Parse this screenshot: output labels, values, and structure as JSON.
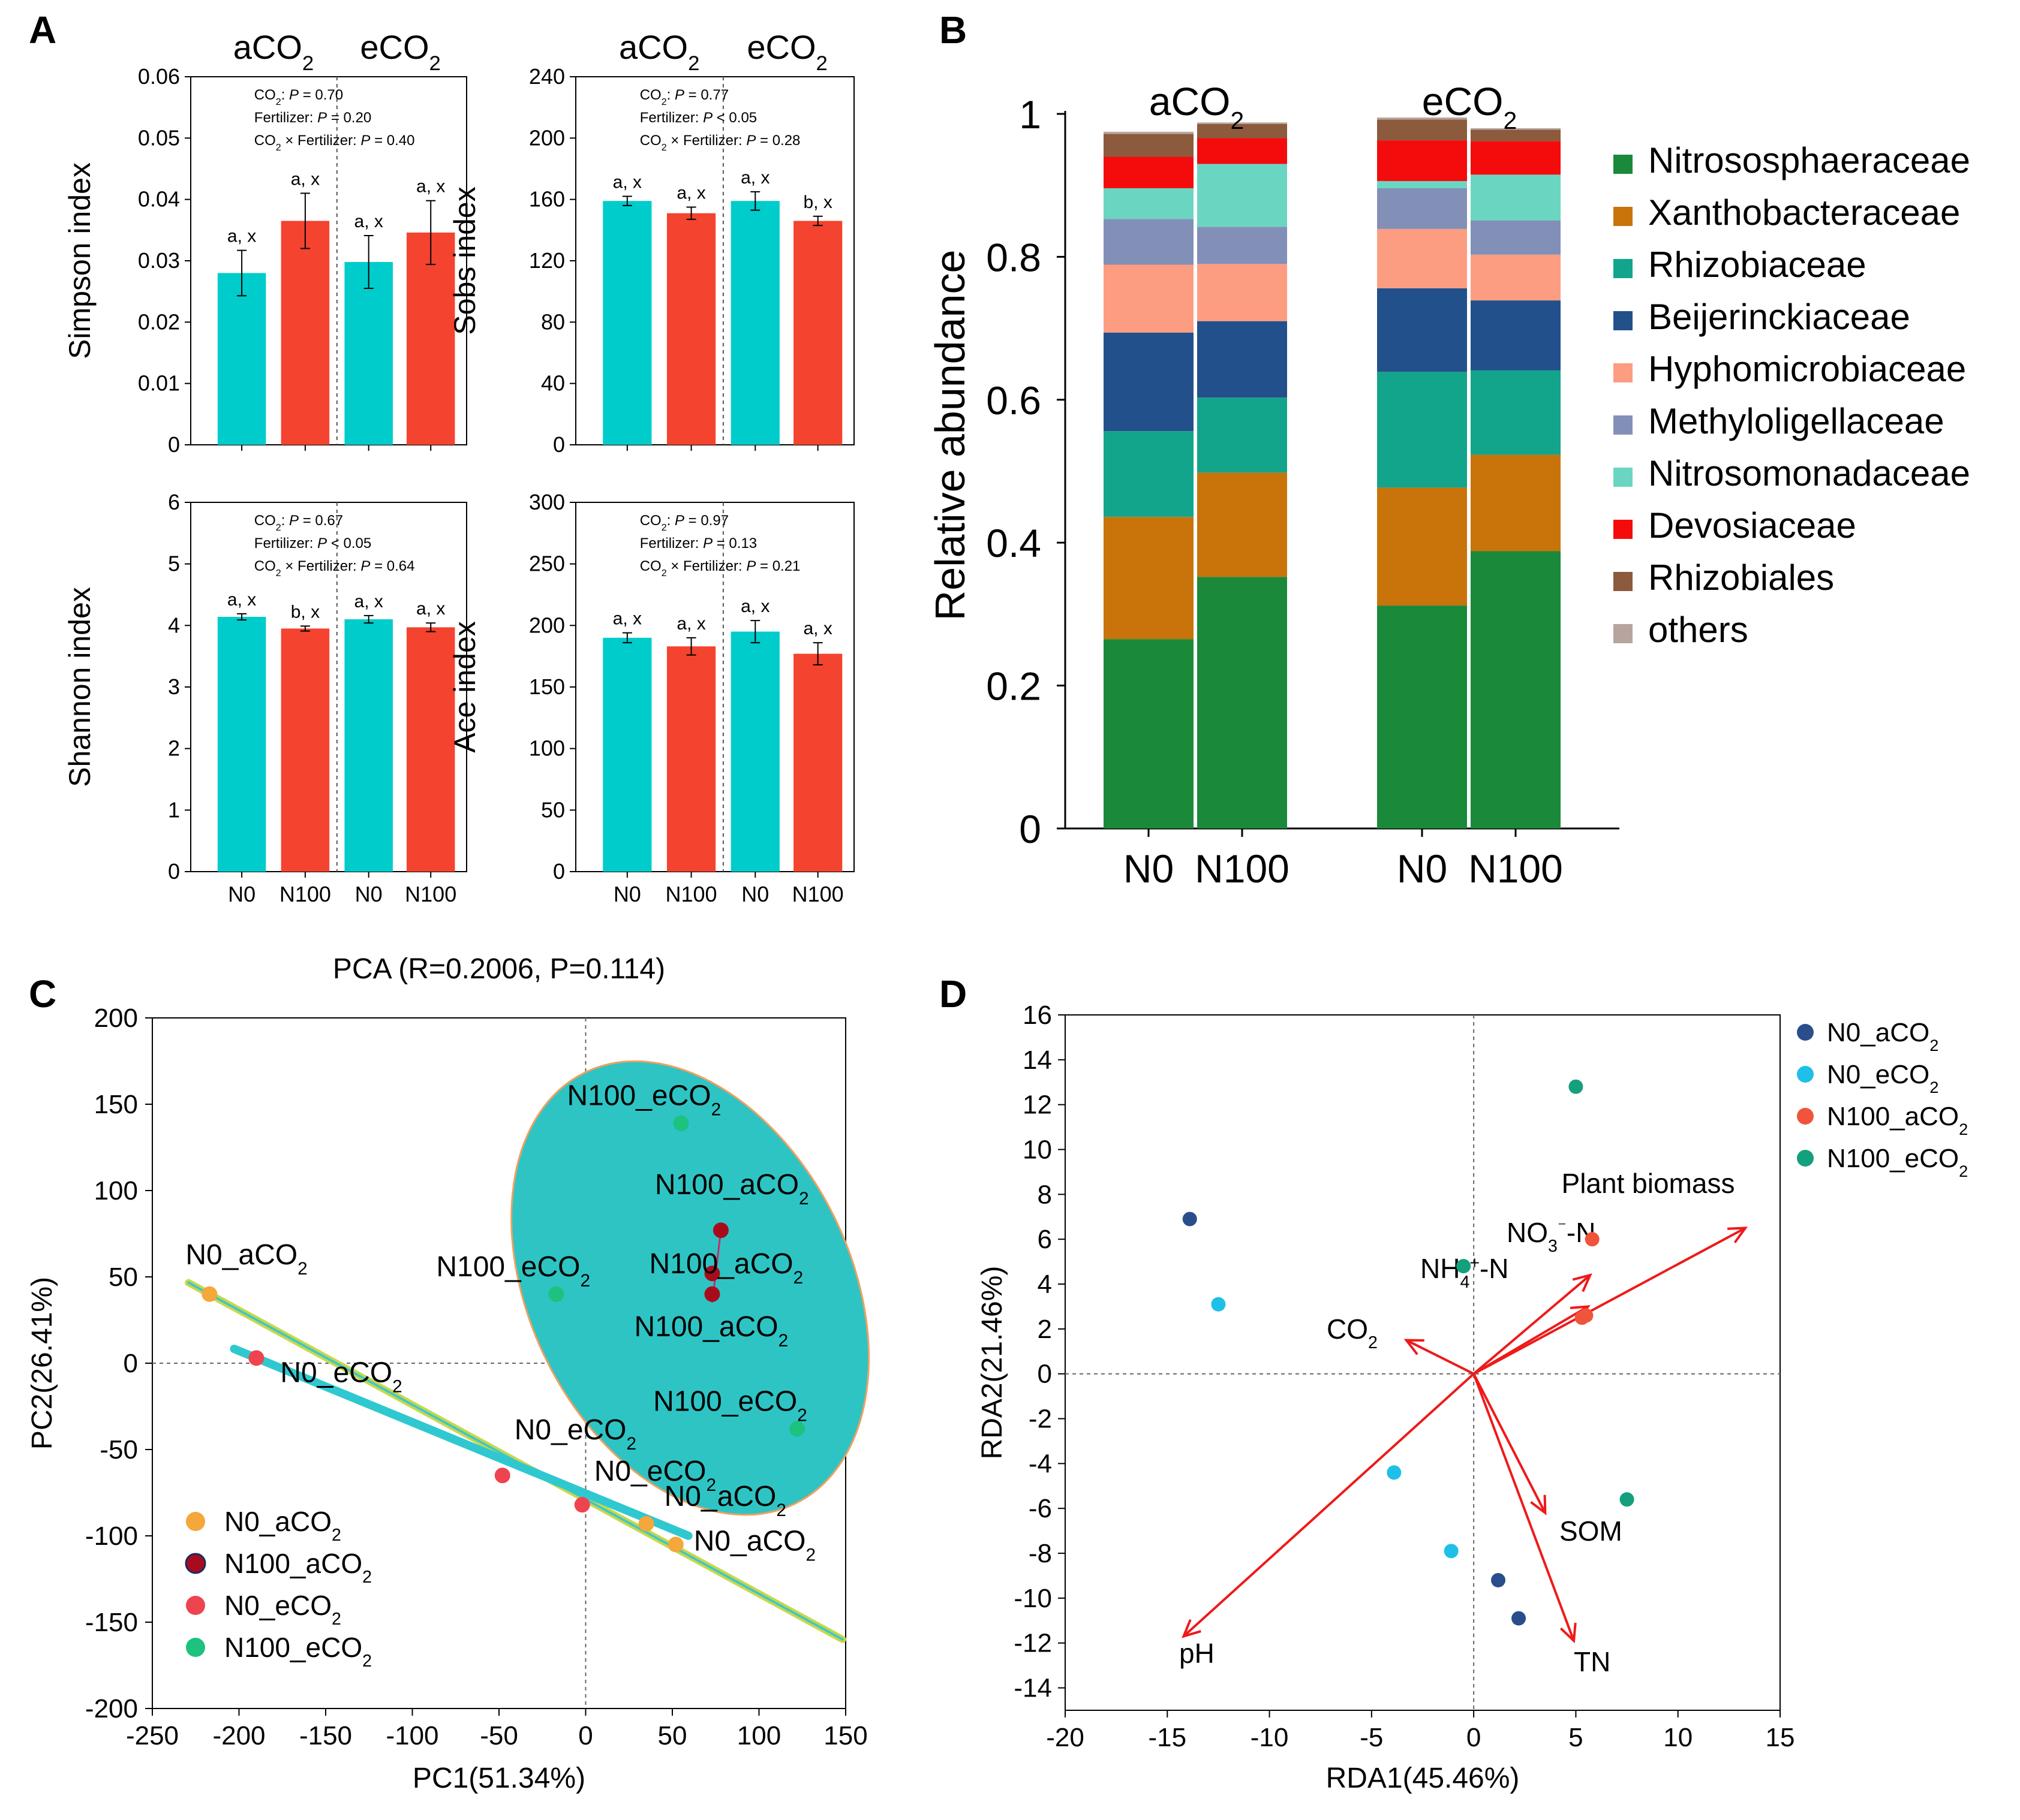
{
  "chart_data": [
    {
      "panel": "A",
      "type": "bar",
      "title": "",
      "ylabel": "Simpson index",
      "groups": [
        "aCO2",
        "eCO2"
      ],
      "categories": [
        "N0",
        "N100",
        "N0",
        "N100"
      ],
      "values": [
        0.028,
        0.0365,
        0.0298,
        0.0346
      ],
      "errors": [
        0.0037,
        0.0045,
        0.0043,
        0.0052
      ],
      "letters": [
        "a, x",
        "a, x",
        "a, x",
        "a, x"
      ],
      "yticks": [
        "0",
        "0.01",
        "0.02",
        "0.03",
        "0.04",
        "0.05",
        "0.06"
      ],
      "ylim": [
        0,
        0.06
      ],
      "stats": [
        "CO2: P = 0.70",
        "Fertilizer: P = 0.20",
        "CO2 × Fertilizer: P = 0.40"
      ]
    },
    {
      "panel": "A",
      "type": "bar",
      "title": "",
      "ylabel": "Sobs index",
      "groups": [
        "aCO2",
        "eCO2"
      ],
      "categories": [
        "N0",
        "N100",
        "N0",
        "N100"
      ],
      "values": [
        159,
        151,
        159,
        146
      ],
      "errors": [
        3,
        4,
        6,
        3
      ],
      "letters": [
        "a, x",
        "a, x",
        "a, x",
        "b, x"
      ],
      "yticks": [
        "0",
        "40",
        "80",
        "120",
        "160",
        "200",
        "240"
      ],
      "ylim": [
        0,
        240
      ],
      "stats": [
        "CO2: P = 0.77",
        "Fertilizer: P < 0.05",
        "CO2 × Fertilizer: P = 0.28"
      ]
    },
    {
      "panel": "A",
      "type": "bar",
      "title": "",
      "ylabel": "Shannon index",
      "groups": [
        "aCO2",
        "eCO2"
      ],
      "categories": [
        "N0",
        "N100",
        "N0",
        "N100"
      ],
      "values": [
        4.14,
        3.95,
        4.1,
        3.97
      ],
      "errors": [
        0.05,
        0.04,
        0.06,
        0.07
      ],
      "letters": [
        "a, x",
        "b, x",
        "a, x",
        "a, x"
      ],
      "yticks": [
        "0",
        "1",
        "2",
        "3",
        "4",
        "5",
        "6"
      ],
      "ylim": [
        0,
        6
      ],
      "stats": [
        "CO2: P = 0.67",
        "Fertilizer: P < 0.05",
        "CO2 × Fertilizer: P = 0.64"
      ]
    },
    {
      "panel": "A",
      "type": "bar",
      "title": "",
      "ylabel": "Ace index",
      "groups": [
        "aCO2",
        "eCO2"
      ],
      "categories": [
        "N0",
        "N100",
        "N0",
        "N100"
      ],
      "values": [
        190,
        183,
        195,
        177
      ],
      "errors": [
        4,
        7,
        9,
        9
      ],
      "letters": [
        "a, x",
        "a, x",
        "a, x",
        "a, x"
      ],
      "yticks": [
        "0",
        "50",
        "100",
        "150",
        "200",
        "250",
        "300"
      ],
      "ylim": [
        0,
        300
      ],
      "stats": [
        "CO2: P = 0.97",
        "Fertilizer: P = 0.13",
        "CO2 × Fertilizer: P = 0.21"
      ]
    },
    {
      "panel": "B",
      "type": "bar",
      "stacked": true,
      "ylabel": "Relative abundance",
      "groups": [
        "aCO2",
        "eCO2"
      ],
      "categories": [
        "N0",
        "N100",
        "N0",
        "N100"
      ],
      "yticks": [
        "0",
        "0.2",
        "0.4",
        "0.6",
        "0.8",
        "1"
      ],
      "ylim": [
        0,
        1
      ],
      "series": [
        {
          "name": "Nitrososphaeraceae",
          "color": "#1a8a3a",
          "values": [
            0.265,
            0.352,
            0.312,
            0.388
          ]
        },
        {
          "name": "Xanthobacteraceae",
          "color": "#c8740a",
          "values": [
            0.171,
            0.146,
            0.165,
            0.135
          ]
        },
        {
          "name": "Rhizobiaceae",
          "color": "#12a58c",
          "values": [
            0.12,
            0.105,
            0.162,
            0.118
          ]
        },
        {
          "name": "Beijerinckiaceae",
          "color": "#22508a",
          "values": [
            0.138,
            0.107,
            0.117,
            0.098
          ]
        },
        {
          "name": "Hyphomicrobiaceae",
          "color": "#fc9d82",
          "values": [
            0.095,
            0.08,
            0.083,
            0.064
          ]
        },
        {
          "name": "Methyloligellaceae",
          "color": "#8290b8",
          "values": [
            0.064,
            0.052,
            0.057,
            0.048
          ]
        },
        {
          "name": "Nitrosomonadaceae",
          "color": "#6ad6c2",
          "values": [
            0.043,
            0.088,
            0.01,
            0.064
          ]
        },
        {
          "name": "Devosiaceae",
          "color": "#f40c0c",
          "values": [
            0.044,
            0.036,
            0.057,
            0.047
          ]
        },
        {
          "name": "Rhizobiales",
          "color": "#8c5a3c",
          "values": [
            0.032,
            0.02,
            0.029,
            0.016
          ]
        },
        {
          "name": "others",
          "color": "#b8a49e",
          "values": [
            0.003,
            0.002,
            0.003,
            0.002
          ]
        }
      ]
    },
    {
      "panel": "C",
      "type": "scatter",
      "title": "PCA (R=0.2006, P=0.114)",
      "xlabel": "PC1(51.34%)",
      "ylabel": "PC2(26.41%)",
      "xlim": [
        -250,
        150
      ],
      "ylim": [
        -200,
        200
      ],
      "xticks": [
        "-250",
        "-200",
        "-150",
        "-100",
        "-50",
        "0",
        "50",
        "100",
        "150"
      ],
      "yticks": [
        "-200",
        "-150",
        "-100",
        "-50",
        "0",
        "50",
        "100",
        "150",
        "200"
      ],
      "series": [
        {
          "name": "N0_aCO2",
          "color": "#f4a73a",
          "points": [
            [
              -217,
              40
            ],
            [
              35,
              -93
            ],
            [
              52,
              -105
            ]
          ]
        },
        {
          "name": "N100_aCO2",
          "color": "#a80c1c",
          "points": [
            [
              78,
              77
            ],
            [
              73,
              52
            ],
            [
              73,
              40
            ]
          ]
        },
        {
          "name": "N0_eCO2",
          "color": "#ee4450",
          "points": [
            [
              -190,
              3
            ],
            [
              -48,
              -65
            ],
            [
              -2,
              -82
            ]
          ]
        },
        {
          "name": "N100_eCO2",
          "color": "#1cc27e",
          "points": [
            [
              55,
              139
            ],
            [
              -17,
              40
            ],
            [
              122,
              -38
            ]
          ]
        }
      ],
      "point_labels": [
        {
          "text": "N0_aCO2",
          "x": -217,
          "y": 40
        },
        {
          "text": "N0_aCO2",
          "x": 35,
          "y": -93
        },
        {
          "text": "N0_aCO2",
          "x": 52,
          "y": -105
        },
        {
          "text": "N100_aCO2",
          "x": 78,
          "y": 77
        },
        {
          "text": "N100_aCO2",
          "x": 73,
          "y": 52
        },
        {
          "text": "N100_aCO2",
          "x": 73,
          "y": 40
        },
        {
          "text": "N0_eCO2",
          "x": -190,
          "y": 3
        },
        {
          "text": "N0_eCO2",
          "x": -48,
          "y": -65
        },
        {
          "text": "N0_eCO2",
          "x": -2,
          "y": -82
        },
        {
          "text": "N100_eCO2",
          "x": 55,
          "y": 139
        },
        {
          "text": "N100_eCO2",
          "x": -17,
          "y": 40
        },
        {
          "text": "N100_eCO2",
          "x": 122,
          "y": -38
        }
      ]
    },
    {
      "panel": "D",
      "type": "scatter",
      "title": "",
      "xlabel": "RDA1(45.46%)",
      "ylabel": "RDA2(21.46%)",
      "xlim": [
        -20,
        15
      ],
      "ylim": [
        -15,
        16
      ],
      "xticks": [
        "-20",
        "-15",
        "-10",
        "-5",
        "0",
        "5",
        "10",
        "15"
      ],
      "yticks": [
        "-14",
        "-12",
        "-10",
        "-8",
        "-6",
        "-4",
        "-2",
        "0",
        "2",
        "4",
        "6",
        "8",
        "10",
        "12",
        "14",
        "16"
      ],
      "series": [
        {
          "name": "N0_aCO2",
          "color": "#2a4e8c",
          "points": [
            [
              -13.9,
              6.9
            ],
            [
              1.2,
              -9.2
            ],
            [
              2.2,
              -10.9
            ]
          ]
        },
        {
          "name": "N0_eCO2",
          "color": "#1ec0e8",
          "points": [
            [
              -12.5,
              3.1
            ],
            [
              -3.9,
              -4.4
            ],
            [
              -1.1,
              -7.9
            ]
          ]
        },
        {
          "name": "N100_aCO2",
          "color": "#f0543a",
          "points": [
            [
              5.8,
              6
            ],
            [
              5.3,
              2.5
            ],
            [
              5.5,
              2.6
            ]
          ]
        },
        {
          "name": "N100_eCO2",
          "color": "#14a07c",
          "points": [
            [
              5,
              12.8
            ],
            [
              -0.5,
              4.8
            ],
            [
              7.5,
              -5.6
            ]
          ]
        }
      ],
      "arrows": [
        {
          "name": "Plant biomass",
          "x": 13.3,
          "y": 6.5
        },
        {
          "name": "NO3--N",
          "x": 5.7,
          "y": 4.4
        },
        {
          "name": "NH4+-N",
          "x": 5.6,
          "y": 3
        },
        {
          "name": "CO2",
          "x": -3.3,
          "y": 1.5
        },
        {
          "name": "SOM",
          "x": 3.5,
          "y": -6.2
        },
        {
          "name": "TN",
          "x": 4.9,
          "y": -11.9
        },
        {
          "name": "pH",
          "x": -14.2,
          "y": -11.7
        }
      ]
    }
  ],
  "labels": {
    "panel_a": "A",
    "panel_b": "B",
    "panel_c": "C",
    "panel_d": "D",
    "aco2": "aCO",
    "eco2": "eCO",
    "sub2": "2",
    "n0": "N0",
    "n100": "N100",
    "nh4_a": "NH",
    "nh4_b": "4",
    "nh4_c": "+",
    "nh4_d": "-N",
    "no3_a": "NO",
    "no3_b": "3",
    "no3_c": "⁻",
    "no3_d": "-N",
    "co2_a": "CO",
    "co2_b": "2"
  }
}
